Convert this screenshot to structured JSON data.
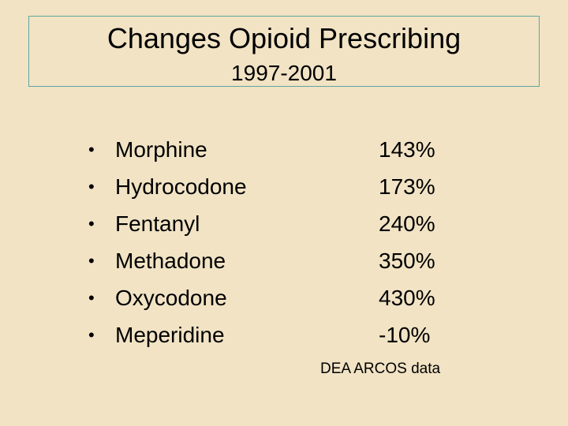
{
  "title": {
    "main": "Changes Opioid Prescribing",
    "sub": "1997-2001"
  },
  "bullet_glyph": "•",
  "items": [
    {
      "drug": "Morphine",
      "change": "143%"
    },
    {
      "drug": "Hydrocodone",
      "change": "173%"
    },
    {
      "drug": "Fentanyl",
      "change": "240%"
    },
    {
      "drug": "Methadone",
      "change": "350%"
    },
    {
      "drug": "Oxycodone",
      "change": "430%"
    },
    {
      "drug": "Meperidine",
      "change": "-10%"
    }
  ],
  "source": "DEA ARCOS data",
  "colors": {
    "background": "#f1e3c4",
    "title_border": "#5fa5a0",
    "text": "#000000"
  }
}
